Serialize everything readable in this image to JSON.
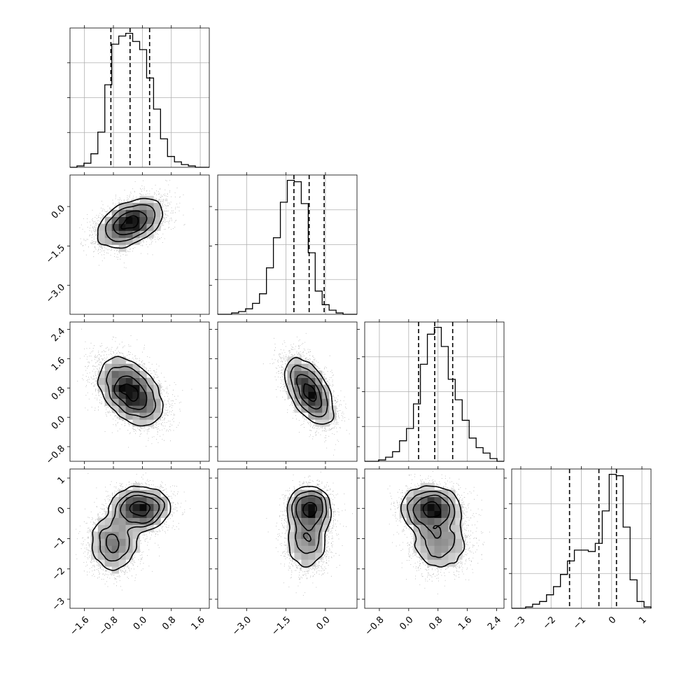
{
  "chart_data": {
    "type": "corner",
    "parameters": [
      {
        "index": 0,
        "range": [
          -2.0,
          1.85
        ],
        "ticks": [
          -1.6,
          -0.8,
          0.0,
          0.8,
          1.6
        ],
        "tick_labels": [
          "−1.6",
          "−0.8",
          "0.0",
          "0.8",
          "1.6"
        ],
        "mean": -0.34,
        "sd": 0.44,
        "quantiles": [
          -0.87,
          -0.34,
          0.2
        ]
      },
      {
        "index": 1,
        "range": [
          -4.1,
          1.2
        ],
        "ticks": [
          -3.0,
          -1.5,
          0.0
        ],
        "tick_labels": [
          "−3.0",
          "−1.5",
          "0.0"
        ],
        "mean": -0.62,
        "sd": 0.45,
        "quantiles": [
          -1.2,
          -0.62,
          -0.05
        ]
      },
      {
        "index": 2,
        "range": [
          -1.2,
          2.6
        ],
        "ticks": [
          -0.8,
          0.0,
          0.8,
          1.6,
          2.4
        ],
        "tick_labels": [
          "−0.8",
          "0.0",
          "0.8",
          "1.6",
          "2.4"
        ],
        "mean": 0.71,
        "sd": 0.45,
        "quantiles": [
          0.27,
          0.71,
          1.2
        ]
      },
      {
        "index": 3,
        "range": [
          -3.3,
          1.3
        ],
        "ticks": [
          -3,
          -2,
          -1,
          0,
          1
        ],
        "tick_labels": [
          "−3",
          "−2",
          "−1",
          "0",
          "1"
        ],
        "quantiles": [
          -1.39,
          -0.42,
          0.16
        ]
      }
    ],
    "histograms": [
      {
        "param": 0,
        "bin_start": -2.0,
        "bin_width": 0.1925,
        "counts": [
          0,
          1,
          3,
          10,
          26,
          61,
          91,
          97,
          99,
          93,
          87,
          66,
          43,
          21,
          8,
          4,
          2,
          1,
          0,
          0
        ]
      },
      {
        "param": 1,
        "bin_start": -4.1,
        "bin_width": 0.265,
        "counts": [
          0,
          0,
          1,
          2,
          4,
          8,
          15,
          34,
          56,
          82,
          98,
          97,
          81,
          45,
          17,
          7,
          3,
          1,
          0,
          0
        ]
      },
      {
        "param": 2,
        "bin_start": -1.2,
        "bin_width": 0.19,
        "counts": [
          0,
          0,
          1,
          3,
          7,
          15,
          24,
          42,
          71,
          93,
          98,
          84,
          60,
          45,
          30,
          17,
          10,
          6,
          2,
          0
        ]
      },
      {
        "param": 3,
        "bin_start": -3.3,
        "bin_width": 0.23,
        "counts": [
          0,
          0,
          1,
          3,
          5,
          10,
          16,
          25,
          35,
          43,
          43,
          42,
          48,
          72,
          99,
          98,
          60,
          21,
          5,
          1
        ]
      }
    ],
    "pair_structure": {
      "0-1": {
        "rho": 0.45
      },
      "0-2": {
        "rho": -0.45
      },
      "1-2": {
        "rho": -0.55
      },
      "0-3": {
        "modes": [
          {
            "mean": [
              -0.05,
              0.0
            ],
            "sd": [
              0.4,
              0.35
            ],
            "weight": 0.6
          },
          {
            "mean": [
              -0.8,
              -1.15
            ],
            "sd": [
              0.35,
              0.5
            ],
            "weight": 0.4
          }
        ]
      },
      "1-3": {
        "modes": [
          {
            "mean": [
              -0.6,
              0.0
            ],
            "sd": [
              0.4,
              0.35
            ],
            "weight": 0.6
          },
          {
            "mean": [
              -0.7,
              -1.1
            ],
            "sd": [
              0.4,
              0.5
            ],
            "weight": 0.4
          }
        ]
      },
      "2-3": {
        "modes": [
          {
            "mean": [
              0.6,
              0.0
            ],
            "sd": [
              0.4,
              0.35
            ],
            "weight": 0.6
          },
          {
            "mean": [
              0.85,
              -1.1
            ],
            "sd": [
              0.4,
              0.5
            ],
            "weight": 0.4
          }
        ]
      }
    }
  }
}
